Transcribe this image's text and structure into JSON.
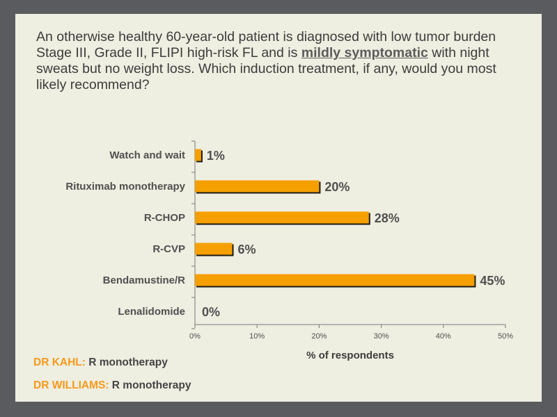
{
  "question": {
    "part1": "An otherwise healthy 60-year-old patient is diagnosed with low tumor burden Stage III, Grade II, FLIPI high-risk FL and is ",
    "emphasis": "mildly symptomatic",
    "part2": " with night sweats but no weight loss. Which induction treatment, if any, would you most likely recommend?"
  },
  "chart_data": {
    "type": "bar",
    "orientation": "horizontal",
    "categories": [
      "Watch and wait",
      "Rituximab monotherapy",
      "R-CHOP",
      "R-CVP",
      "Bendamustine/R",
      "Lenalidomide"
    ],
    "values": [
      1,
      20,
      28,
      6,
      45,
      0
    ],
    "value_labels": [
      "1%",
      "20%",
      "28%",
      "6%",
      "45%",
      "0%"
    ],
    "xticks": [
      "0%",
      "10%",
      "20%",
      "30%",
      "40%",
      "50%"
    ],
    "xlim": [
      0,
      50
    ],
    "xlabel": "% of respondents",
    "bar_color": "#f5a000"
  },
  "faculty": [
    {
      "name": "DR KAHL:",
      "answer": "R monotherapy"
    },
    {
      "name": "DR WILLIAMS:",
      "answer": "R monotherapy"
    }
  ]
}
